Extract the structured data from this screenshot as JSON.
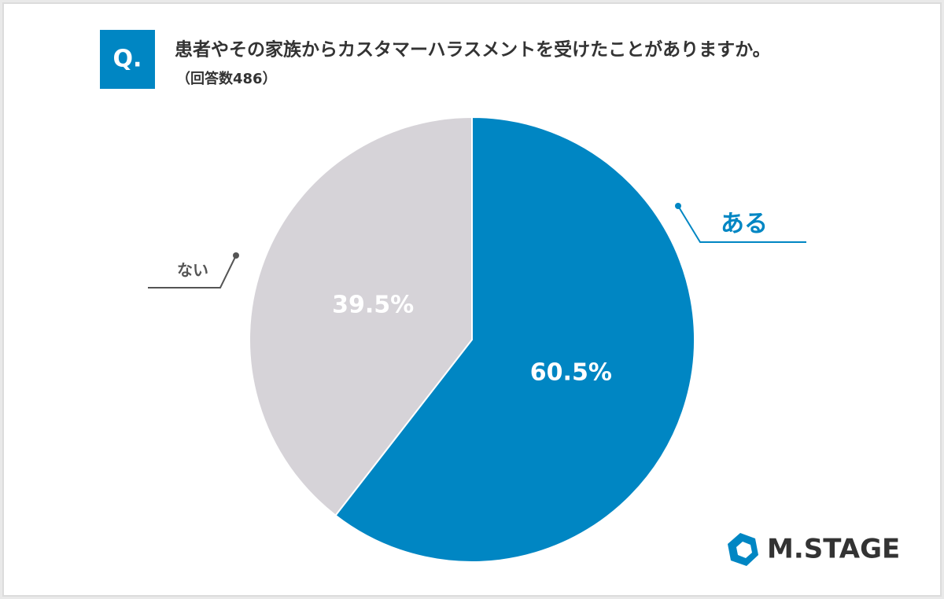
{
  "badge": "Q.",
  "logo": "M.STAGE",
  "chart_data": {
    "type": "pie",
    "title": "患者やその家族からカスタマーハラスメントを受けたことがありますか。",
    "subtitle": "（回答数486）",
    "categories": [
      "ある",
      "ない"
    ],
    "values": [
      60.5,
      39.5
    ],
    "value_labels": [
      "60.5%",
      "39.5%"
    ],
    "colors": [
      "#0086c3",
      "#d6d3d8"
    ]
  }
}
